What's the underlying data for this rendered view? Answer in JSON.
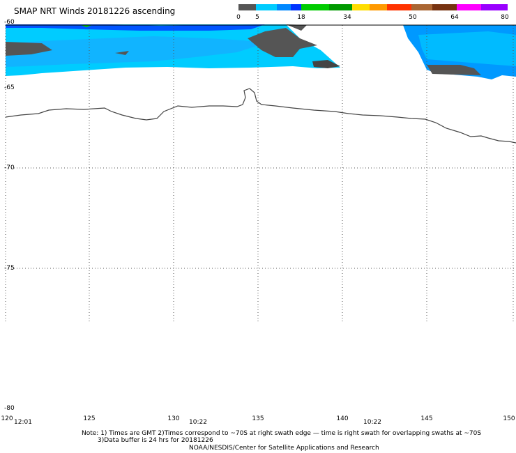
{
  "title": "SMAP NRT Winds 20181226 ascending",
  "colorbar": {
    "labels": [
      "0",
      "5",
      "18",
      "34",
      "50",
      "64",
      "80"
    ],
    "colors": [
      "#444444",
      "#555555",
      "#00ccff",
      "#0088ff",
      "#0033ff",
      "#00cc00",
      "#009900",
      "#ffdd00",
      "#ff9900",
      "#ff3300",
      "#dd0000",
      "#aa6633",
      "#773311",
      "#ff00ff",
      "#9900ff"
    ]
  },
  "latitude_labels": [
    "-60",
    "-65",
    "-70",
    "-75",
    "-80"
  ],
  "longitude_labels": [
    "120",
    "125",
    "130",
    "135",
    "140",
    "145",
    "150"
  ],
  "time_labels": [
    "12:01",
    "10:22",
    "10:22"
  ],
  "notes": {
    "line1": "Note: 1) Times are GMT 2)Times correspond to ~70S at right swath edge — time is right swath for overlapping swaths at ~70S",
    "line2": "3)Data buffer is 24 hrs for 20181226",
    "line3": "NOAA/NESDIS/Center for Satellite Applications and Research"
  },
  "palette": {
    "land": "#555555",
    "wind_low": "#00ccff",
    "wind_mid": "#0088ff",
    "wind_high": "#0033ff",
    "coast": "#444444"
  }
}
